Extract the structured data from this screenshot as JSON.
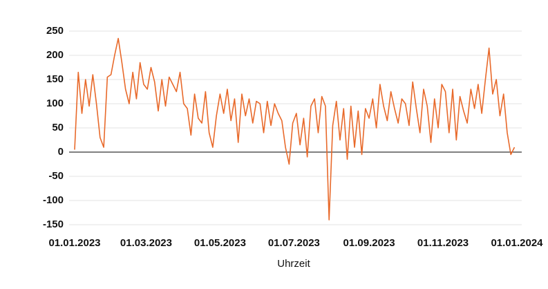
{
  "chart_data": {
    "type": "line",
    "xlabel": "Uhrzeit",
    "x": [
      "01.01.2023",
      "04.01.2023",
      "07.01.2023",
      "10.01.2023",
      "13.01.2023",
      "16.01.2023",
      "19.01.2023",
      "22.01.2023",
      "25.01.2023",
      "28.01.2023",
      "31.01.2023",
      "03.02.2023",
      "06.02.2023",
      "09.02.2023",
      "12.02.2023",
      "15.02.2023",
      "18.02.2023",
      "21.02.2023",
      "24.02.2023",
      "27.02.2023",
      "02.03.2023",
      "05.03.2023",
      "08.03.2023",
      "11.03.2023",
      "14.03.2023",
      "17.03.2023",
      "20.03.2023",
      "23.03.2023",
      "26.03.2023",
      "29.03.2023",
      "01.04.2023",
      "04.04.2023",
      "07.04.2023",
      "10.04.2023",
      "13.04.2023",
      "16.04.2023",
      "19.04.2023",
      "22.04.2023",
      "25.04.2023",
      "28.04.2023",
      "01.05.2023",
      "04.05.2023",
      "07.05.2023",
      "10.05.2023",
      "13.05.2023",
      "16.05.2023",
      "19.05.2023",
      "22.05.2023",
      "25.05.2023",
      "28.05.2023",
      "31.05.2023",
      "03.06.2023",
      "06.06.2023",
      "09.06.2023",
      "12.06.2023",
      "15.06.2023",
      "18.06.2023",
      "21.06.2023",
      "24.06.2023",
      "27.06.2023",
      "30.06.2023",
      "03.07.2023",
      "06.07.2023",
      "09.07.2023",
      "12.07.2023",
      "15.07.2023",
      "18.07.2023",
      "21.07.2023",
      "24.07.2023",
      "27.07.2023",
      "30.07.2023",
      "02.08.2023",
      "05.08.2023",
      "08.08.2023",
      "11.08.2023",
      "14.08.2023",
      "17.08.2023",
      "20.08.2023",
      "23.08.2023",
      "26.08.2023",
      "29.08.2023",
      "01.09.2023",
      "04.09.2023",
      "07.09.2023",
      "10.09.2023",
      "13.09.2023",
      "16.09.2023",
      "19.09.2023",
      "22.09.2023",
      "25.09.2023",
      "28.09.2023",
      "01.10.2023",
      "04.10.2023",
      "07.10.2023",
      "10.10.2023",
      "13.10.2023",
      "16.10.2023",
      "19.10.2023",
      "22.10.2023",
      "25.10.2023",
      "28.10.2023",
      "31.10.2023",
      "03.11.2023",
      "06.11.2023",
      "09.11.2023",
      "12.11.2023",
      "15.11.2023",
      "18.11.2023",
      "21.11.2023",
      "24.11.2023",
      "27.11.2023",
      "30.11.2023",
      "03.12.2023",
      "06.12.2023",
      "09.12.2023",
      "12.12.2023",
      "15.12.2023",
      "18.12.2023",
      "21.12.2023",
      "24.12.2023",
      "27.12.2023",
      "30.12.2023"
    ],
    "series": [
      {
        "color": "#e8692a",
        "values": [
          5,
          165,
          80,
          150,
          95,
          160,
          100,
          30,
          10,
          155,
          160,
          200,
          235,
          185,
          130,
          100,
          165,
          110,
          185,
          140,
          130,
          175,
          145,
          85,
          150,
          95,
          155,
          140,
          125,
          165,
          100,
          90,
          35,
          120,
          70,
          60,
          125,
          40,
          10,
          75,
          120,
          80,
          130,
          65,
          110,
          20,
          120,
          75,
          110,
          60,
          105,
          100,
          40,
          105,
          55,
          100,
          80,
          65,
          10,
          -25,
          60,
          80,
          15,
          70,
          -10,
          95,
          110,
          40,
          115,
          95,
          -140,
          55,
          105,
          25,
          90,
          -15,
          95,
          10,
          85,
          -5,
          90,
          70,
          110,
          50,
          140,
          95,
          65,
          125,
          90,
          60,
          110,
          100,
          55,
          145,
          90,
          40,
          130,
          95,
          20,
          110,
          50,
          140,
          125,
          40,
          130,
          25,
          115,
          85,
          60,
          130,
          90,
          140,
          80,
          150,
          215,
          120,
          150,
          75,
          120,
          40,
          -5,
          10
        ]
      }
    ],
    "xlim": [
      "01.01.2023",
      "01.01.2024"
    ],
    "xticks": [
      "01.01.2023",
      "01.03.2023",
      "01.05.2023",
      "01.07.2023",
      "01.09.2023",
      "01.11.2023",
      "01.01.2024"
    ],
    "ylim": [
      -150,
      250
    ],
    "yticks": [
      -150,
      -100,
      -50,
      0,
      50,
      100,
      150,
      200,
      250
    ],
    "grid": true
  }
}
